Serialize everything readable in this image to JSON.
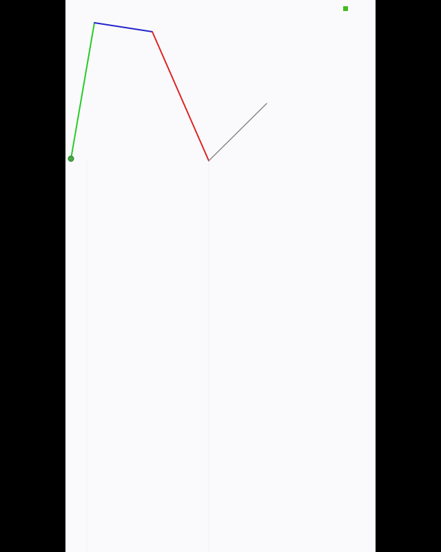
{
  "colors": {
    "background": "#fafafc",
    "letterbox": "#000000",
    "segment_1": "#22cc22",
    "segment_2": "#2222cc",
    "segment_3": "#dd2222",
    "segment_4": "#888888",
    "base_joint": "#44aa44",
    "target_marker": "#44bb22"
  },
  "icons": {
    "base_joint": "circle-joint-icon",
    "target_marker": "square-target-icon"
  },
  "arm": {
    "segment_count": 4,
    "segment_colors": [
      "segment_1",
      "segment_2",
      "segment_3",
      "segment_4"
    ]
  }
}
